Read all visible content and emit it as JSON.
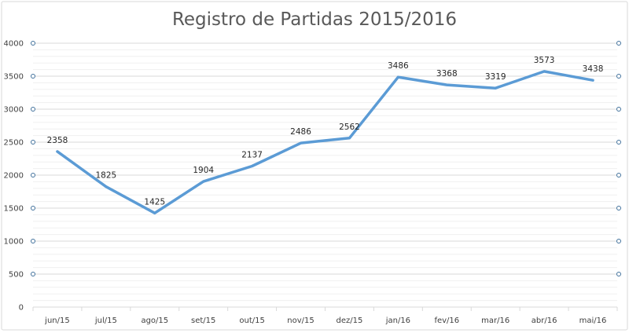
{
  "chart_data": {
    "type": "line",
    "title": "Registro de Partidas 2015/2016",
    "categories": [
      "jun/15",
      "jul/15",
      "ago/15",
      "set/15",
      "out/15",
      "nov/15",
      "dez/15",
      "jan/16",
      "fev/16",
      "mar/16",
      "abr/16",
      "mai/16"
    ],
    "values": [
      2358,
      1825,
      1425,
      1904,
      2137,
      2486,
      2562,
      3486,
      3368,
      3319,
      3573,
      3438
    ],
    "ylim": [
      0,
      4000
    ],
    "yticks": [
      0,
      500,
      1000,
      1500,
      2000,
      2500,
      3000,
      3500,
      4000
    ],
    "minor_grid_step": 100,
    "grid": true,
    "legend": "none",
    "data_labels": true,
    "colors": {
      "line": "#5B9BD5",
      "grid": "#D9D9D9",
      "minor_grid": "#F0F0F0",
      "handle": "#41719C"
    }
  }
}
